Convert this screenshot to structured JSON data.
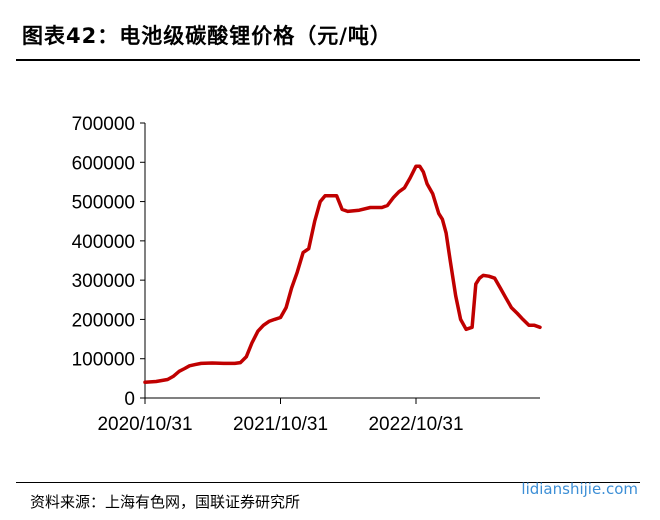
{
  "header": {
    "title": "图表42：电池级碳酸锂价格（元/吨）"
  },
  "footer": {
    "source": "资料来源：上海有色网，国联证券研究所",
    "watermark": "lidianshijie.com"
  },
  "chart_data": {
    "type": "line",
    "title": "图表42：电池级碳酸锂价格（元/吨）",
    "xlabel": "",
    "ylabel": "",
    "x_range": [
      "2020-10-31",
      "2023-09-30"
    ],
    "ylim": [
      0,
      700000
    ],
    "y_ticks": [
      0,
      100000,
      200000,
      300000,
      400000,
      500000,
      600000,
      700000
    ],
    "y_tick_labels": [
      "0",
      "100000",
      "200000",
      "300000",
      "400000",
      "500000",
      "600000",
      "700000"
    ],
    "x_ticks": [
      "2020-10-31",
      "2021-10-31",
      "2022-10-31"
    ],
    "x_tick_labels": [
      "2020/10/31",
      "2021/10/31",
      "2022/10/31"
    ],
    "grid": false,
    "legend": "none",
    "line_color": "#c00000",
    "series": [
      {
        "x": [
          "2020-10-31",
          "2020-11-30",
          "2020-12-31",
          "2021-01-15",
          "2021-01-31",
          "2021-02-15",
          "2021-02-28",
          "2021-03-15",
          "2021-03-31",
          "2021-04-30",
          "2021-05-31",
          "2021-06-30",
          "2021-07-15",
          "2021-07-31",
          "2021-08-15",
          "2021-08-31",
          "2021-09-15",
          "2021-09-30",
          "2021-10-15",
          "2021-10-31",
          "2021-11-15",
          "2021-11-30",
          "2021-12-15",
          "2021-12-31",
          "2022-01-15",
          "2022-01-31",
          "2022-02-15",
          "2022-02-28",
          "2022-03-15",
          "2022-03-31",
          "2022-04-15",
          "2022-04-30",
          "2022-05-31",
          "2022-06-30",
          "2022-07-15",
          "2022-07-31",
          "2022-08-15",
          "2022-08-31",
          "2022-09-15",
          "2022-09-30",
          "2022-10-15",
          "2022-10-31",
          "2022-11-10",
          "2022-11-20",
          "2022-11-30",
          "2022-12-15",
          "2022-12-31",
          "2023-01-10",
          "2023-01-20",
          "2023-01-31",
          "2023-02-15",
          "2023-02-28",
          "2023-03-15",
          "2023-03-31",
          "2023-04-10",
          "2023-04-20",
          "2023-04-30",
          "2023-05-15",
          "2023-05-31",
          "2023-06-15",
          "2023-06-30",
          "2023-07-15",
          "2023-07-31",
          "2023-08-15",
          "2023-08-31",
          "2023-09-15",
          "2023-09-30"
        ],
        "values": [
          40000,
          42000,
          47000,
          55000,
          68000,
          75000,
          82000,
          85000,
          88000,
          89000,
          88000,
          88000,
          90000,
          105000,
          140000,
          170000,
          185000,
          195000,
          200000,
          205000,
          230000,
          280000,
          320000,
          370000,
          380000,
          450000,
          500000,
          515000,
          515000,
          515000,
          480000,
          475000,
          478000,
          485000,
          485000,
          485000,
          490000,
          510000,
          525000,
          535000,
          560000,
          590000,
          590000,
          575000,
          545000,
          520000,
          470000,
          455000,
          420000,
          350000,
          260000,
          200000,
          175000,
          180000,
          290000,
          305000,
          312000,
          310000,
          305000,
          280000,
          255000,
          230000,
          215000,
          200000,
          185000,
          185000,
          180000
        ]
      }
    ]
  }
}
